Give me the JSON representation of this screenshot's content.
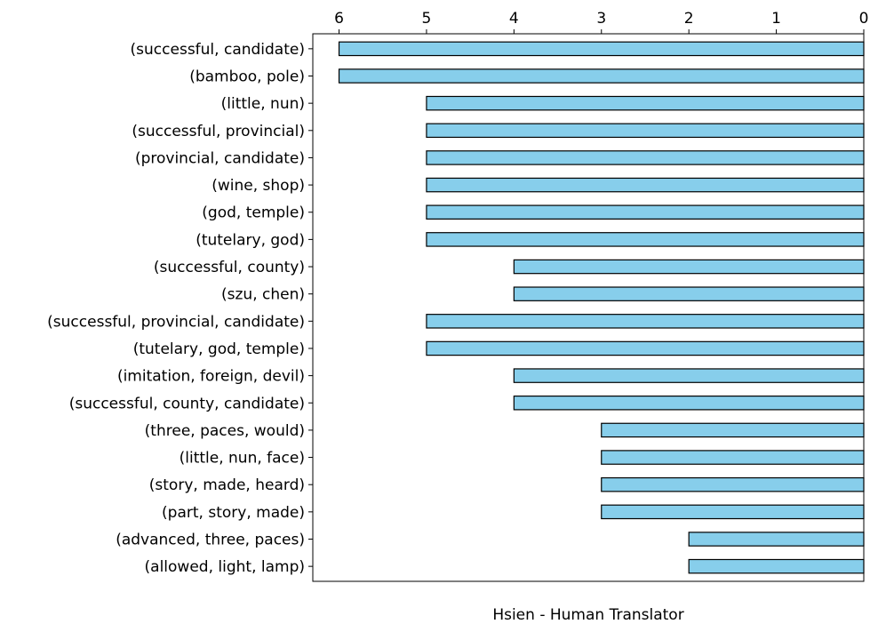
{
  "chart_data": {
    "type": "bar",
    "orientation": "horizontal",
    "x_axis_direction": "reversed",
    "x_tick_position": "top",
    "title": "",
    "xlabel": "Hsien - Human Translator",
    "ylabel": "",
    "xlim": [
      0,
      6.3
    ],
    "x_ticks": [
      6,
      5,
      4,
      3,
      2,
      1,
      0
    ],
    "grid": false,
    "bar_color": "#87CEEB",
    "bar_edge_color": "#000000",
    "categories": [
      "(successful, candidate)",
      "(bamboo, pole)",
      "(little, nun)",
      "(successful, provincial)",
      "(provincial, candidate)",
      "(wine, shop)",
      "(god, temple)",
      "(tutelary, god)",
      "(successful, county)",
      "(szu, chen)",
      "(successful, provincial, candidate)",
      "(tutelary, god, temple)",
      "(imitation, foreign, devil)",
      "(successful, county, candidate)",
      "(three, paces, would)",
      "(little, nun, face)",
      "(story, made, heard)",
      "(part, story, made)",
      "(advanced, three, paces)",
      "(allowed, light, lamp)"
    ],
    "values": [
      6,
      6,
      5,
      5,
      5,
      5,
      5,
      5,
      4,
      4,
      5,
      5,
      4,
      4,
      3,
      3,
      3,
      3,
      2,
      2
    ]
  }
}
